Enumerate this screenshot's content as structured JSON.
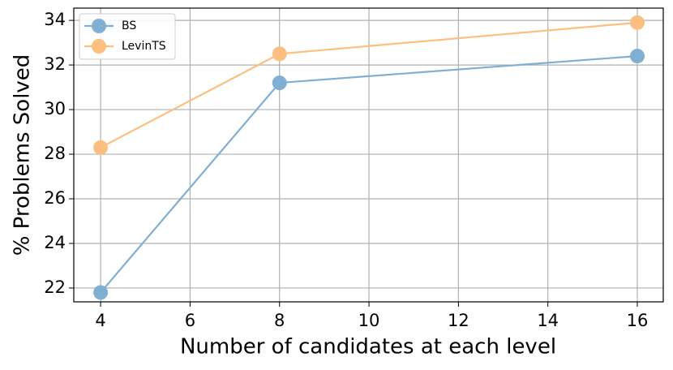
{
  "chart_data": {
    "type": "line",
    "x_label": "Number of candidates at each level",
    "y_label": "% Problems Solved",
    "x": [
      4,
      8,
      16
    ],
    "series": [
      {
        "name": "BS",
        "color": "#7fafd3",
        "values": [
          21.8,
          31.2,
          32.4
        ]
      },
      {
        "name": "LevinTS",
        "color": "#fdbf7f",
        "values": [
          28.3,
          32.5,
          33.9
        ]
      }
    ],
    "xlim": [
      3.4,
      16.58
    ],
    "xticks": [
      4,
      6,
      8,
      10,
      12,
      14,
      16
    ],
    "ylim": [
      21.38,
      34.55
    ],
    "yticks": [
      22,
      24,
      26,
      28,
      30,
      32,
      34
    ],
    "grid": true,
    "legend": "upper-left"
  }
}
